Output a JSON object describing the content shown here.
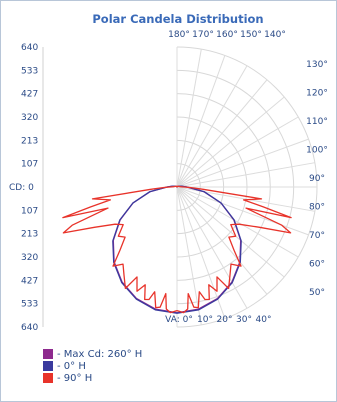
{
  "chart_data": {
    "type": "polar",
    "title": "Polar Candela Distribution",
    "radial_axis": {
      "label_prefix": "CD:",
      "tick_labels_upper": [
        "640",
        "533",
        "427",
        "320",
        "213",
        "107"
      ],
      "center_label": "0",
      "tick_labels_lower": [
        "107",
        "213",
        "320",
        "427",
        "533",
        "640"
      ],
      "max": 640,
      "step": 106.67
    },
    "angle_labels_top": [
      "180°",
      "170°",
      "160°",
      "150°",
      "140°"
    ],
    "angle_labels_right": [
      "130°",
      "120°",
      "110°",
      "100°",
      "90°",
      "80°",
      "70°",
      "60°",
      "50°"
    ],
    "angle_labels_bottom_prefix": "VA:",
    "angle_labels_bottom": [
      "0°",
      "10°",
      "20°",
      "30°",
      "40°"
    ],
    "grid": true,
    "legend_placement": "bottom-left",
    "series": [
      {
        "name": "- Max Cd: 260° H",
        "color": "#8e2a8e",
        "points": [
          [
            0,
            575
          ],
          [
            10,
            567
          ],
          [
            20,
            542
          ],
          [
            30,
            502
          ],
          [
            40,
            447
          ],
          [
            50,
            380
          ],
          [
            60,
            300
          ],
          [
            70,
            214
          ],
          [
            80,
            126
          ],
          [
            90,
            45
          ],
          [
            100,
            20
          ],
          [
            110,
            12
          ],
          [
            120,
            7
          ],
          [
            130,
            4
          ],
          [
            140,
            2
          ],
          [
            150,
            1
          ],
          [
            160,
            1
          ],
          [
            170,
            0
          ],
          [
            180,
            0
          ]
        ]
      },
      {
        "name": "- 0° H",
        "color": "#3a3a9e",
        "points": [
          [
            0,
            577
          ],
          [
            10,
            570
          ],
          [
            20,
            545
          ],
          [
            30,
            505
          ],
          [
            40,
            450
          ],
          [
            50,
            383
          ],
          [
            60,
            302
          ],
          [
            70,
            215
          ],
          [
            80,
            127
          ],
          [
            90,
            46
          ],
          [
            100,
            20
          ],
          [
            110,
            12
          ],
          [
            120,
            7
          ],
          [
            130,
            4
          ],
          [
            140,
            2
          ],
          [
            150,
            1
          ],
          [
            160,
            1
          ],
          [
            170,
            0
          ],
          [
            180,
            0
          ]
        ]
      },
      {
        "name": "- 90° H",
        "color": "#e8332a",
        "points": [
          [
            0,
            565
          ],
          [
            3,
            575
          ],
          [
            5,
            560
          ],
          [
            6,
            490
          ],
          [
            8,
            555
          ],
          [
            10,
            560
          ],
          [
            12,
            490
          ],
          [
            14,
            530
          ],
          [
            16,
            535
          ],
          [
            18,
            470
          ],
          [
            21,
            510
          ],
          [
            24,
            450
          ],
          [
            27,
            520
          ],
          [
            31,
            470
          ],
          [
            35,
            430
          ],
          [
            39,
            465
          ],
          [
            42,
            390
          ],
          [
            46,
            330
          ],
          [
            50,
            350
          ],
          [
            55,
            300
          ],
          [
            59,
            330
          ],
          [
            64,
            420
          ],
          [
            68,
            560
          ],
          [
            70,
            510
          ],
          [
            73,
            330
          ],
          [
            75,
            540
          ],
          [
            77,
            405
          ],
          [
            79,
            310
          ],
          [
            82,
            390
          ],
          [
            85,
            120
          ],
          [
            88,
            60
          ],
          [
            90,
            30
          ],
          [
            95,
            15
          ],
          [
            110,
            8
          ],
          [
            130,
            5
          ],
          [
            150,
            3
          ],
          [
            180,
            0
          ]
        ]
      }
    ]
  }
}
